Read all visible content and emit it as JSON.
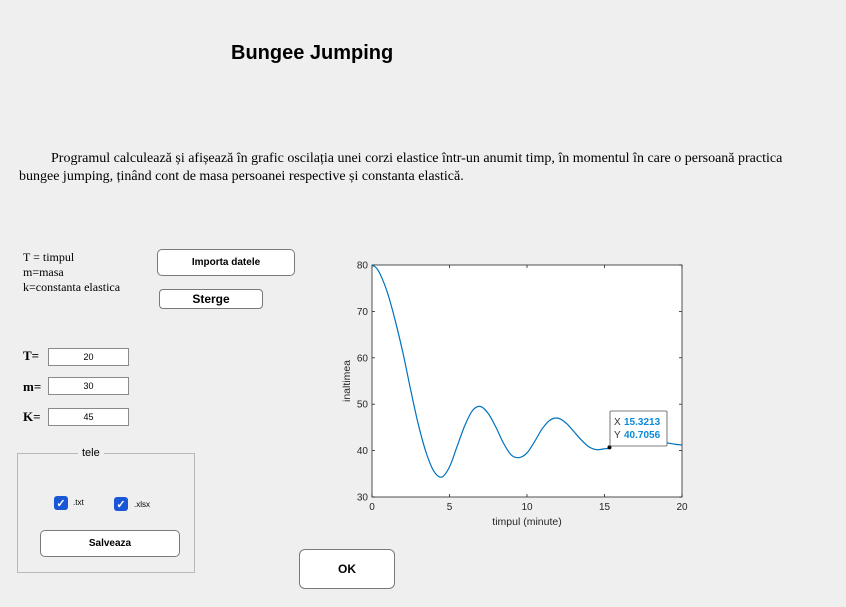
{
  "title": "Bungee Jumping",
  "description": "Programul calculează și afișează în grafic oscilația unei corzi elastice într-un anumit timp, în momentul în care o persoană practica bungee jumping,  ținând cont de masa persoanei respective  și constanta elastică.",
  "legend": {
    "line1": "T = timpul",
    "line2": "m=masa",
    "line3": "k=constanta elastica"
  },
  "buttons": {
    "import": "Importa datele",
    "clear": "Sterge",
    "save": "Salveaza",
    "ok": "OK"
  },
  "inputs": {
    "t_label": "T=",
    "t_value": "20",
    "m_label": "m=",
    "m_value": "30",
    "k_label": "K=",
    "k_value": "45"
  },
  "panel": {
    "title": "tele",
    "txt_label": ".txt",
    "txt_checked": true,
    "xlsx_label": ".xlsx",
    "xlsx_checked": true
  },
  "colors": {
    "line": "#0072BD",
    "checkbox": "#1a57d6",
    "datatip_value": "#0b8ad8"
  },
  "chart_data": {
    "type": "line",
    "xlabel": "timpul (minute)",
    "ylabel": "inaltimea",
    "xlim": [
      0,
      20
    ],
    "ylim": [
      30,
      80
    ],
    "xticks": [
      0,
      5,
      10,
      15,
      20
    ],
    "yticks": [
      30,
      40,
      50,
      60,
      70,
      80
    ],
    "grid": false,
    "series": [
      {
        "x": [
          0,
          0.3,
          0.6,
          1.0,
          1.5,
          2.0,
          2.5,
          3.0,
          3.5,
          4.0,
          4.5,
          5.0,
          5.5,
          6.0,
          6.5,
          7.0,
          7.5,
          8.0,
          8.5,
          9.0,
          9.5,
          10.0,
          10.5,
          11.0,
          11.5,
          12.0,
          12.5,
          13.0,
          13.5,
          14.0,
          14.5,
          15.0,
          15.3213,
          16.0,
          16.5,
          17.0,
          17.5,
          18.0,
          18.5,
          19.0,
          19.5,
          20.0
        ],
        "y": [
          80,
          79.3,
          77.5,
          74,
          68,
          61,
          53,
          45.5,
          39.5,
          35.5,
          34.3,
          36.5,
          41,
          45.5,
          48.7,
          49.5,
          48,
          45,
          41.5,
          39,
          38.5,
          39.5,
          42,
          44.8,
          46.6,
          47,
          46,
          44.2,
          42.3,
          40.8,
          40.2,
          40.4,
          40.7056,
          43.5,
          44.6,
          44.8,
          44.2,
          43.2,
          42.3,
          41.7,
          41.4,
          41.2
        ]
      }
    ],
    "datatip": {
      "x_label": "X",
      "x": "15.3213",
      "y_label": "Y",
      "y": "40.7056"
    }
  }
}
